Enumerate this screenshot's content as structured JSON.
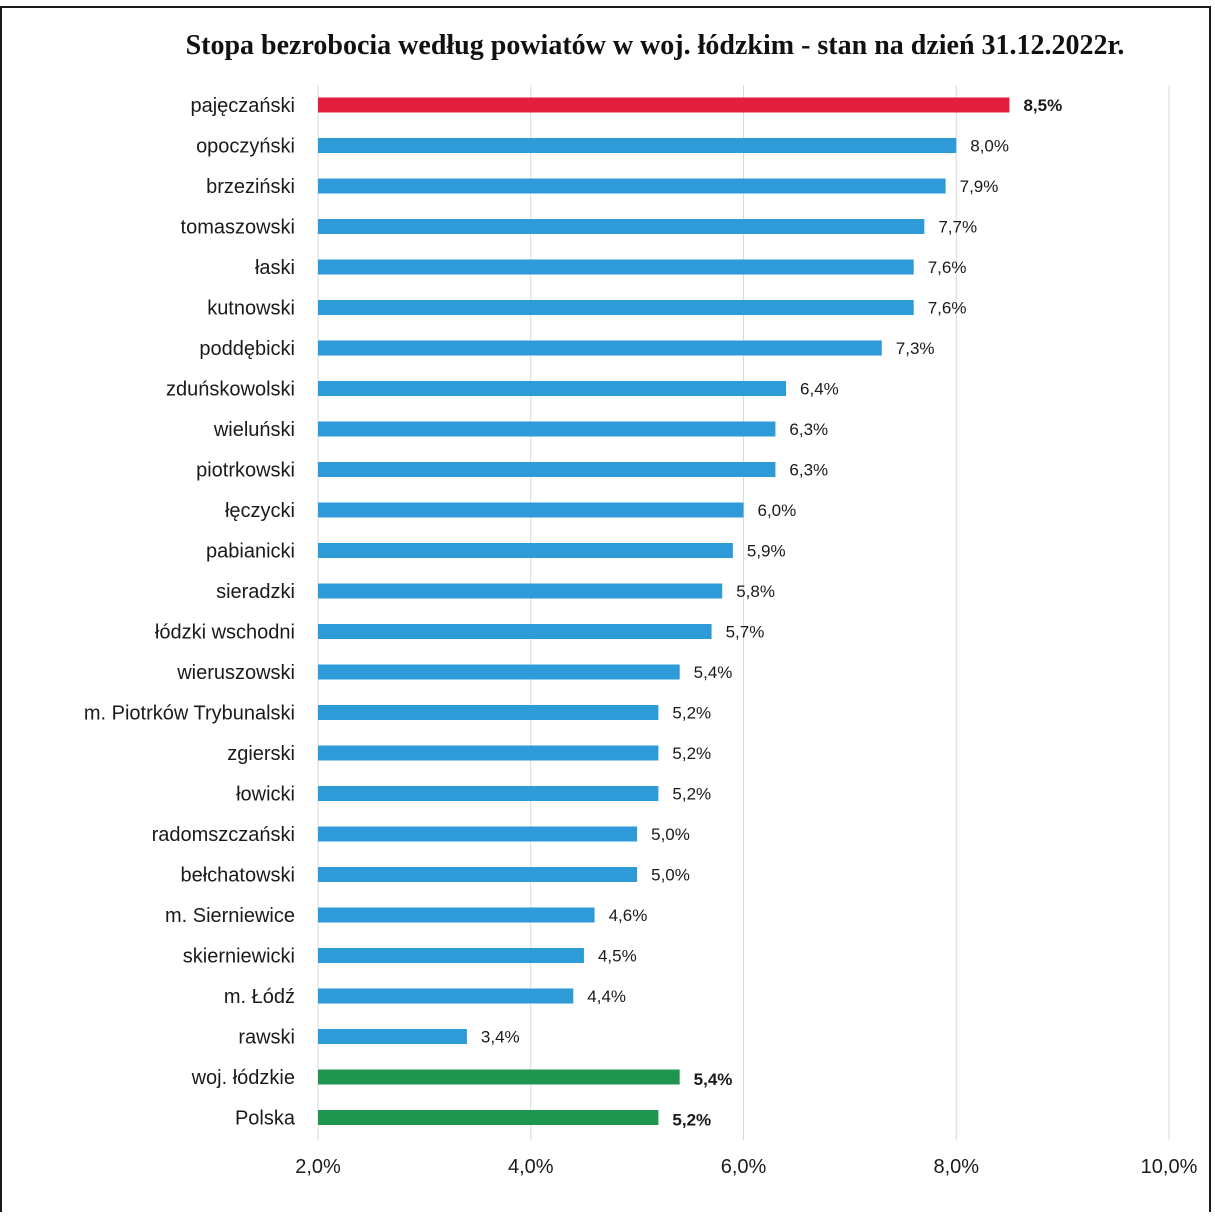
{
  "chart_data": {
    "type": "bar",
    "orientation": "horizontal",
    "title": "Stopa bezrobocia według powiatów w woj. łódzkim - stan na dzień 31.12.2022r.",
    "categories": [
      "pajęczański",
      "opoczyński",
      "brzeziński",
      "tomaszowski",
      "łaski",
      "kutnowski",
      "poddębicki",
      "zduńskowolski",
      "wieluński",
      "piotrkowski",
      "łęczycki",
      "pabianicki",
      "sieradzki",
      "łódzki wschodni",
      "wieruszowski",
      "m. Piotrków Trybunalski",
      "zgierski",
      "łowicki",
      "radomszczański",
      "bełchatowski",
      "m. Sierniewice",
      "skierniewicki",
      "m. Łódź",
      "rawski",
      "woj. łódzkie",
      "Polska"
    ],
    "values": [
      8.5,
      8.0,
      7.9,
      7.7,
      7.6,
      7.6,
      7.3,
      6.4,
      6.3,
      6.3,
      6.0,
      5.9,
      5.8,
      5.7,
      5.4,
      5.2,
      5.2,
      5.2,
      5.0,
      5.0,
      4.6,
      4.5,
      4.4,
      3.4,
      5.4,
      5.2
    ],
    "value_labels": [
      "8,5%",
      "8,0%",
      "7,9%",
      "7,7%",
      "7,6%",
      "7,6%",
      "7,3%",
      "6,4%",
      "6,3%",
      "6,3%",
      "6,0%",
      "5,9%",
      "5,8%",
      "5,7%",
      "5,4%",
      "5,2%",
      "5,2%",
      "5,2%",
      "5,0%",
      "5,0%",
      "4,6%",
      "4,5%",
      "4,4%",
      "3,4%",
      "5,4%",
      "5,2%"
    ],
    "bar_colors": [
      "#e31e3c",
      "#2f9ad8",
      "#2f9ad8",
      "#2f9ad8",
      "#2f9ad8",
      "#2f9ad8",
      "#2f9ad8",
      "#2f9ad8",
      "#2f9ad8",
      "#2f9ad8",
      "#2f9ad8",
      "#2f9ad8",
      "#2f9ad8",
      "#2f9ad8",
      "#2f9ad8",
      "#2f9ad8",
      "#2f9ad8",
      "#2f9ad8",
      "#2f9ad8",
      "#2f9ad8",
      "#2f9ad8",
      "#2f9ad8",
      "#2f9ad8",
      "#2f9ad8",
      "#1e9650",
      "#1e9650"
    ],
    "label_colors": [
      "#e31e3c",
      "#1a1a1a",
      "#1a1a1a",
      "#1a1a1a",
      "#1a1a1a",
      "#1a1a1a",
      "#1a1a1a",
      "#1a1a1a",
      "#1a1a1a",
      "#1a1a1a",
      "#1a1a1a",
      "#1a1a1a",
      "#1a1a1a",
      "#1a1a1a",
      "#1a1a1a",
      "#1a1a1a",
      "#1a1a1a",
      "#1a1a1a",
      "#1a1a1a",
      "#1a1a1a",
      "#1a1a1a",
      "#1a1a1a",
      "#1a1a1a",
      "#1a1a1a",
      "#1e9650",
      "#1e9650"
    ],
    "emphasized_labels": [
      0,
      24,
      25
    ],
    "x_ticks": [
      2.0,
      4.0,
      6.0,
      8.0,
      10.0
    ],
    "x_tick_labels": [
      "2,0%",
      "4,0%",
      "6,0%",
      "8,0%",
      "10,0%"
    ],
    "xlim": [
      2.0,
      10.0
    ],
    "grid": "vertical",
    "xlabel": "",
    "ylabel": ""
  }
}
